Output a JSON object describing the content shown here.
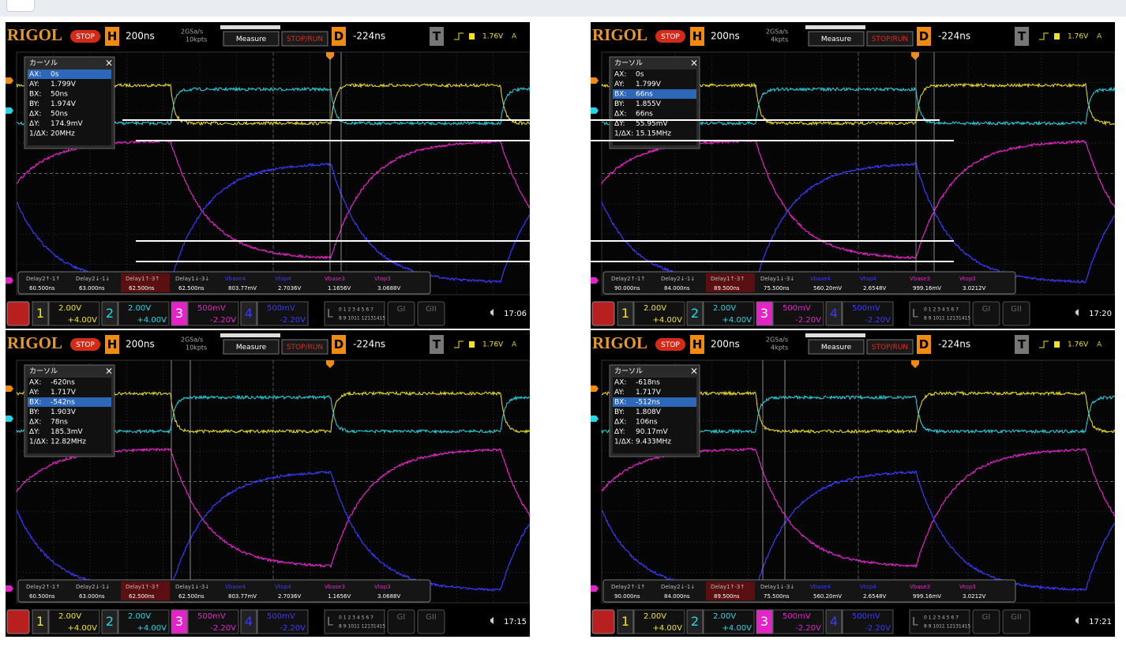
{
  "panels": [
    {
      "brand": "RIGOL",
      "status": "STOP",
      "h_label": "H",
      "timebase": "200ns",
      "sample_rate": "2GSa/s",
      "memory": "10kpts",
      "measure": "Measure",
      "stop_run": "STOP/RUN",
      "d_label": "D",
      "delay": "-224ns",
      "t_label": "T",
      "trigger_level": "1.76V",
      "trigger_mode": "A",
      "cursor": {
        "title": "カーソル",
        "close": "×",
        "selected_row": 0,
        "rows": [
          [
            "AX:",
            "0s"
          ],
          [
            "AY:",
            "1.799V"
          ],
          [
            "BX:",
            "50ns"
          ],
          [
            "BY:",
            "1.974V"
          ],
          [
            "ΔX:",
            "50ns"
          ],
          [
            "ΔY:",
            "174.9mV"
          ],
          [
            "1/ΔX:",
            "20MHz"
          ]
        ]
      },
      "measurements": [
        {
          "label": "Delay2↑-1↑",
          "value": "60.500ns"
        },
        {
          "label": "Delay2↓-1↓",
          "value": "63.000ns"
        },
        {
          "label": "Delay1↑-3↑",
          "value": "62.500ns"
        },
        {
          "label": "Delay1↓-3↓",
          "value": "62.500ns"
        },
        {
          "label": "Vbase4",
          "value": "803.77mV"
        },
        {
          "label": "Vtop4",
          "value": "2.7036V"
        },
        {
          "label": "Vbase3",
          "value": "1.1656V"
        },
        {
          "label": "Vtop3",
          "value": "3.0688V"
        }
      ],
      "channels": [
        {
          "num": "1",
          "scale": "2.00V",
          "offset": "+4.00V"
        },
        {
          "num": "2",
          "scale": "2.00V",
          "offset": "+4.00V"
        },
        {
          "num": "3",
          "scale": "500mV",
          "offset": "-2.20V"
        },
        {
          "num": "4",
          "scale": "500mV",
          "offset": "-2.20V"
        }
      ],
      "la_label": "L",
      "la_bits_low": "0 1 2 3 4 5 6 7",
      "la_bits_high": "8 9 1011 12131415",
      "gi": [
        "GI",
        "GII"
      ],
      "time": "17:06"
    },
    {
      "brand": "RIGOL",
      "status": "STOP",
      "h_label": "H",
      "timebase": "200ns",
      "sample_rate": "2GSa/s",
      "memory": "4kpts",
      "measure": "Measure",
      "stop_run": "STOP/RUN",
      "d_label": "D",
      "delay": "-224ns",
      "t_label": "T",
      "trigger_level": "1.76V",
      "trigger_mode": "A",
      "cursor": {
        "title": "カーソル",
        "close": "×",
        "selected_row": 2,
        "rows": [
          [
            "AX:",
            "0s"
          ],
          [
            "AY:",
            "1.799V"
          ],
          [
            "BX:",
            "66ns"
          ],
          [
            "BY:",
            "1.855V"
          ],
          [
            "ΔX:",
            "66ns"
          ],
          [
            "ΔY:",
            "55.95mV"
          ],
          [
            "1/ΔX:",
            "15.15MHz"
          ]
        ]
      },
      "measurements": [
        {
          "label": "Delay2↑-1↑",
          "value": "90.000ns"
        },
        {
          "label": "Delay2↓-1↓",
          "value": "84.000ns"
        },
        {
          "label": "Delay1↑-3↑",
          "value": "89.500ns"
        },
        {
          "label": "Delay1↓-3↓",
          "value": "75.500ns"
        },
        {
          "label": "Vbase4",
          "value": "560.20mV"
        },
        {
          "label": "Vtop4",
          "value": "2.6548V"
        },
        {
          "label": "Vbase3",
          "value": "999.16mV"
        },
        {
          "label": "Vtop3",
          "value": "3.0212V"
        }
      ],
      "channels": [
        {
          "num": "1",
          "scale": "2.00V",
          "offset": "+4.00V"
        },
        {
          "num": "2",
          "scale": "2.00V",
          "offset": "+4.00V"
        },
        {
          "num": "3",
          "scale": "500mV",
          "offset": "-2.20V"
        },
        {
          "num": "4",
          "scale": "500mV",
          "offset": "-2.20V"
        }
      ],
      "la_label": "L",
      "la_bits_low": "0 1 2 3 4 5 6 7",
      "la_bits_high": "8 9 1011 12131415",
      "gi": [
        "GI",
        "GII"
      ],
      "time": "17:20"
    },
    {
      "brand": "RIGOL",
      "status": "STOP",
      "h_label": "H",
      "timebase": "200ns",
      "sample_rate": "2GSa/s",
      "memory": "10kpts",
      "measure": "Measure",
      "stop_run": "STOP/RUN",
      "d_label": "D",
      "delay": "-224ns",
      "t_label": "T",
      "trigger_level": "1.76V",
      "trigger_mode": "A",
      "cursor": {
        "title": "カーソル",
        "close": "×",
        "selected_row": 2,
        "rows": [
          [
            "AX:",
            "-620ns"
          ],
          [
            "AY:",
            "1.717V"
          ],
          [
            "BX:",
            "-542ns"
          ],
          [
            "BY:",
            "1.903V"
          ],
          [
            "ΔX:",
            "78ns"
          ],
          [
            "ΔY:",
            "185.3mV"
          ],
          [
            "1/ΔX:",
            "12.82MHz"
          ]
        ]
      },
      "measurements": [
        {
          "label": "Delay2↑-1↑",
          "value": "60.500ns"
        },
        {
          "label": "Delay2↓-1↓",
          "value": "63.000ns"
        },
        {
          "label": "Delay1↑-3↑",
          "value": "62.500ns"
        },
        {
          "label": "Delay1↓-3↓",
          "value": "62.500ns"
        },
        {
          "label": "Vbase4",
          "value": "803.77mV"
        },
        {
          "label": "Vtop4",
          "value": "2.7036V"
        },
        {
          "label": "Vbase3",
          "value": "1.1656V"
        },
        {
          "label": "Vtop3",
          "value": "3.0688V"
        }
      ],
      "channels": [
        {
          "num": "1",
          "scale": "2.00V",
          "offset": "+4.00V"
        },
        {
          "num": "2",
          "scale": "2.00V",
          "offset": "+4.00V"
        },
        {
          "num": "3",
          "scale": "500mV",
          "offset": "-2.20V"
        },
        {
          "num": "4",
          "scale": "500mV",
          "offset": "-2.20V"
        }
      ],
      "la_label": "L",
      "la_bits_low": "0 1 2 3 4 5 6 7",
      "la_bits_high": "8 9 1011 12131415",
      "gi": [
        "GI",
        "GII"
      ],
      "time": "17:15"
    },
    {
      "brand": "RIGOL",
      "status": "STOP",
      "h_label": "H",
      "timebase": "200ns",
      "sample_rate": "2GSa/s",
      "memory": "4kpts",
      "measure": "Measure",
      "stop_run": "STOP/RUN",
      "d_label": "D",
      "delay": "-224ns",
      "t_label": "T",
      "trigger_level": "1.76V",
      "trigger_mode": "A",
      "cursor": {
        "title": "カーソル",
        "close": "×",
        "selected_row": 2,
        "rows": [
          [
            "AX:",
            "-618ns"
          ],
          [
            "AY:",
            "1.717V"
          ],
          [
            "BX:",
            "-512ns"
          ],
          [
            "BY:",
            "1.808V"
          ],
          [
            "ΔX:",
            "106ns"
          ],
          [
            "ΔY:",
            "90.17mV"
          ],
          [
            "1/ΔX:",
            "9.433MHz"
          ]
        ]
      },
      "measurements": [
        {
          "label": "Delay2↑-1↑",
          "value": "90.000ns"
        },
        {
          "label": "Delay2↓-1↓",
          "value": "84.000ns"
        },
        {
          "label": "Delay1↑-3↑",
          "value": "89.500ns"
        },
        {
          "label": "Delay1↓-3↓",
          "value": "75.500ns"
        },
        {
          "label": "Vbase4",
          "value": "560.20mV"
        },
        {
          "label": "Vtop4",
          "value": "2.6548V"
        },
        {
          "label": "Vbase3",
          "value": "999.16mV"
        },
        {
          "label": "Vtop3",
          "value": "3.0212V"
        }
      ],
      "channels": [
        {
          "num": "1",
          "scale": "2.00V",
          "offset": "+4.00V"
        },
        {
          "num": "2",
          "scale": "2.00V",
          "offset": "+4.00V"
        },
        {
          "num": "3",
          "scale": "500mV",
          "offset": "-2.20V"
        },
        {
          "num": "4",
          "scale": "500mV",
          "offset": "-2.20V"
        }
      ],
      "la_label": "L",
      "la_bits_low": "0 1 2 3 4 5 6 7",
      "la_bits_high": "8 9 1011 12131415",
      "gi": [
        "GI",
        "GII"
      ],
      "time": "17:21"
    }
  ]
}
